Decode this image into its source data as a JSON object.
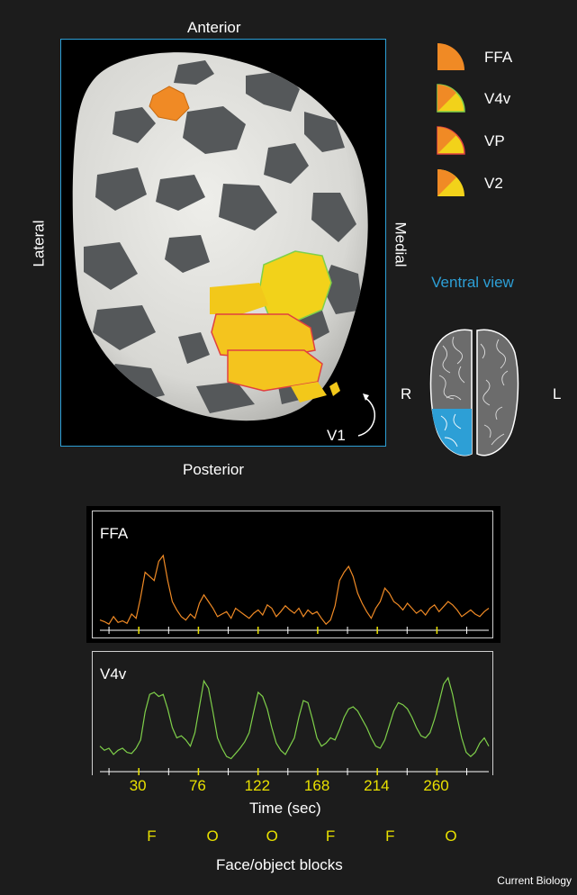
{
  "labels": {
    "anterior": "Anterior",
    "posterior": "Posterior",
    "lateral": "Lateral",
    "medial": "Medial",
    "v1": "V1",
    "ventral_view": "Ventral view",
    "r": "R",
    "l": "L"
  },
  "legend": [
    {
      "label": "FFA",
      "color": "#f08a25"
    },
    {
      "label": "V4v",
      "color": "#f2d21a"
    },
    {
      "label": "VP",
      "color": "#f2d21a"
    },
    {
      "label": "V2",
      "color": "#f2d21a"
    }
  ],
  "colors": {
    "ffa": "#f08a25",
    "v4v": "#7fd04a",
    "accent": "#2d9fd6",
    "tick": "#e8e000"
  },
  "chart_data": [
    {
      "type": "line",
      "name": "FFA",
      "x_range": [
        0,
        300
      ],
      "values": [
        0.08,
        0.06,
        0.03,
        0.12,
        0.05,
        0.07,
        0.04,
        0.15,
        0.1,
        0.35,
        0.65,
        0.6,
        0.55,
        0.78,
        0.85,
        0.55,
        0.3,
        0.2,
        0.12,
        0.08,
        0.15,
        0.1,
        0.28,
        0.38,
        0.3,
        0.22,
        0.12,
        0.15,
        0.18,
        0.1,
        0.22,
        0.18,
        0.14,
        0.1,
        0.16,
        0.2,
        0.14,
        0.26,
        0.22,
        0.12,
        0.18,
        0.25,
        0.2,
        0.16,
        0.22,
        0.12,
        0.2,
        0.15,
        0.18,
        0.1,
        0.03,
        0.08,
        0.25,
        0.55,
        0.65,
        0.72,
        0.6,
        0.4,
        0.28,
        0.18,
        0.1,
        0.22,
        0.3,
        0.46,
        0.4,
        0.3,
        0.26,
        0.2,
        0.28,
        0.22,
        0.16,
        0.2,
        0.14,
        0.22,
        0.26,
        0.18,
        0.24,
        0.3,
        0.26,
        0.2,
        0.12,
        0.16,
        0.2,
        0.15,
        0.12,
        0.18,
        0.22
      ]
    },
    {
      "type": "line",
      "name": "V4v",
      "x_range": [
        0,
        300
      ],
      "x_ticks": [
        30,
        76,
        122,
        168,
        214,
        260
      ],
      "xlabel": "Time (sec)",
      "values": [
        0.22,
        0.18,
        0.2,
        0.14,
        0.18,
        0.2,
        0.16,
        0.15,
        0.2,
        0.28,
        0.55,
        0.72,
        0.74,
        0.7,
        0.72,
        0.58,
        0.4,
        0.3,
        0.32,
        0.28,
        0.22,
        0.35,
        0.6,
        0.85,
        0.78,
        0.55,
        0.3,
        0.2,
        0.12,
        0.1,
        0.15,
        0.2,
        0.26,
        0.35,
        0.55,
        0.74,
        0.7,
        0.58,
        0.4,
        0.25,
        0.18,
        0.14,
        0.22,
        0.3,
        0.5,
        0.66,
        0.64,
        0.48,
        0.3,
        0.22,
        0.25,
        0.3,
        0.28,
        0.38,
        0.5,
        0.58,
        0.6,
        0.56,
        0.48,
        0.4,
        0.3,
        0.22,
        0.2,
        0.28,
        0.42,
        0.56,
        0.64,
        0.62,
        0.58,
        0.5,
        0.4,
        0.32,
        0.3,
        0.35,
        0.48,
        0.64,
        0.82,
        0.88,
        0.72,
        0.5,
        0.3,
        0.16,
        0.12,
        0.16,
        0.25,
        0.3,
        0.22
      ]
    }
  ],
  "blocks": [
    "F",
    "O",
    "O",
    "F",
    "F",
    "O"
  ],
  "blocks_label": "Face/object blocks",
  "credit": "Current Biology"
}
